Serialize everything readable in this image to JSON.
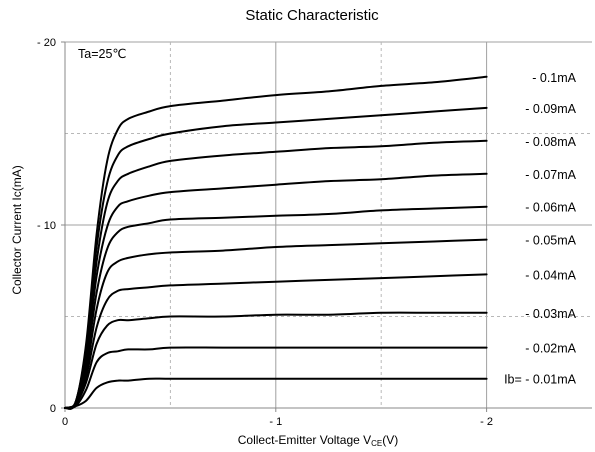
{
  "chart_data": {
    "type": "line",
    "title": "Static Characteristic",
    "xlabel": "Collect-Emitter Voltage  V",
    "xlabel_subscript": "CE",
    "xlabel_unit": "(V)",
    "ylabel": "Collector Current  Ic(mA)",
    "annotation": "Ta=25℃",
    "xlim": [
      0,
      -2.5
    ],
    "ylim": [
      0,
      -20
    ],
    "x_major_ticks": [
      0,
      -1,
      -2
    ],
    "x_tick_labels": [
      "0",
      "- 1",
      "- 2"
    ],
    "x_minor_grid": [
      -0.5,
      -1.5
    ],
    "y_major_ticks": [
      0,
      -10,
      -20
    ],
    "y_tick_labels": [
      "0",
      "- 10",
      "- 20"
    ],
    "y_minor_grid": [
      -5,
      -15
    ],
    "grid": true,
    "x": [
      0,
      -0.05,
      -0.1,
      -0.15,
      -0.2,
      -0.25,
      -0.3,
      -0.4,
      -0.5,
      -0.75,
      -1.0,
      -1.25,
      -1.5,
      -1.75,
      -2.0
    ],
    "series": [
      {
        "name": "- 0.1mA",
        "values": [
          0,
          -0.3,
          -3.5,
          -9.5,
          -13.5,
          -15.2,
          -15.8,
          -16.2,
          -16.5,
          -16.8,
          -17.1,
          -17.3,
          -17.6,
          -17.8,
          -18.1
        ]
      },
      {
        "name": "- 0.09mA",
        "values": [
          0,
          -0.3,
          -3.3,
          -8.8,
          -12.3,
          -13.8,
          -14.3,
          -14.7,
          -15.0,
          -15.4,
          -15.6,
          -15.8,
          -16.0,
          -16.2,
          -16.4
        ]
      },
      {
        "name": "- 0.08mA",
        "values": [
          0,
          -0.3,
          -3.0,
          -8.0,
          -11.2,
          -12.4,
          -12.8,
          -13.2,
          -13.5,
          -13.8,
          -14.0,
          -14.2,
          -14.3,
          -14.5,
          -14.6
        ]
      },
      {
        "name": "- 0.07mA",
        "values": [
          0,
          -0.3,
          -2.7,
          -7.2,
          -9.9,
          -11.0,
          -11.3,
          -11.6,
          -11.8,
          -12.0,
          -12.2,
          -12.4,
          -12.5,
          -12.7,
          -12.8
        ]
      },
      {
        "name": "- 0.06mA",
        "values": [
          0,
          -0.2,
          -2.4,
          -6.3,
          -8.7,
          -9.6,
          -9.9,
          -10.1,
          -10.3,
          -10.4,
          -10.5,
          -10.6,
          -10.8,
          -10.9,
          -11.0
        ]
      },
      {
        "name": "- 0.05mA",
        "values": [
          0,
          -0.2,
          -2.0,
          -5.4,
          -7.4,
          -8.0,
          -8.2,
          -8.4,
          -8.5,
          -8.6,
          -8.8,
          -8.9,
          -9.0,
          -9.1,
          -9.2
        ]
      },
      {
        "name": "- 0.04mA",
        "values": [
          0,
          -0.2,
          -1.7,
          -4.4,
          -5.9,
          -6.4,
          -6.5,
          -6.6,
          -6.7,
          -6.8,
          -6.9,
          -7.0,
          -7.1,
          -7.2,
          -7.3
        ]
      },
      {
        "name": "- 0.03mA",
        "values": [
          0,
          -0.2,
          -1.4,
          -3.5,
          -4.5,
          -4.8,
          -4.8,
          -4.9,
          -5.0,
          -5.0,
          -5.1,
          -5.1,
          -5.2,
          -5.2,
          -5.2
        ]
      },
      {
        "name": "- 0.02mA",
        "values": [
          0,
          -0.1,
          -1.0,
          -2.5,
          -3.0,
          -3.1,
          -3.2,
          -3.2,
          -3.3,
          -3.3,
          -3.3,
          -3.3,
          -3.3,
          -3.3,
          -3.3
        ]
      },
      {
        "name": "Ib= - 0.01mA",
        "values": [
          0,
          -0.1,
          -0.4,
          -1.1,
          -1.4,
          -1.5,
          -1.5,
          -1.6,
          -1.6,
          -1.6,
          -1.6,
          -1.6,
          -1.6,
          -1.6,
          -1.6
        ]
      }
    ]
  }
}
